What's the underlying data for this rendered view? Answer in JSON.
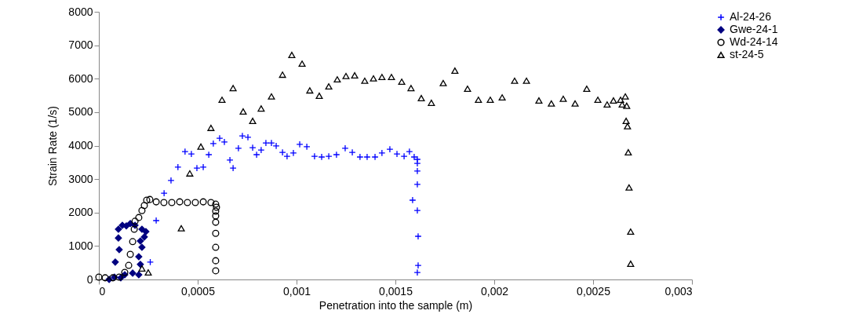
{
  "chart_data": {
    "type": "scatter",
    "xlabel": "Penetration into the sample (m)",
    "ylabel": "Strain Rate (1/s)",
    "xlim": [
      0,
      0.003
    ],
    "ylim": [
      0,
      8000
    ],
    "xticks": [
      0,
      {
        "value": 0.0005,
        "label": "0,0005"
      },
      {
        "value": 0.001,
        "label": "0,001"
      },
      {
        "value": 0.0015,
        "label": "0,0015"
      },
      {
        "value": 0.002,
        "label": "0,002"
      },
      {
        "value": 0.0025,
        "label": "0,0025"
      },
      {
        "value": 0.003,
        "label": "0,003"
      }
    ],
    "yticks": [
      0,
      1000,
      2000,
      3000,
      4000,
      5000,
      6000,
      7000,
      8000
    ],
    "grid": false,
    "legend": "top right",
    "series": [
      {
        "name": "Al-24-26",
        "color": "#0000ff",
        "marker": "cross",
        "x": [
          0.00026,
          0.00029,
          0.00033,
          0.000365,
          0.0004,
          0.000436,
          0.000468,
          0.000496,
          0.000528,
          0.000556,
          0.000579,
          0.000611,
          0.000635,
          0.000663,
          0.000679,
          0.000706,
          0.000726,
          0.000754,
          0.000778,
          0.000798,
          0.000821,
          0.000845,
          0.000873,
          0.000897,
          0.000929,
          0.000952,
          0.000984,
          0.001016,
          0.001052,
          0.001091,
          0.001127,
          0.001163,
          0.001202,
          0.001246,
          0.001282,
          0.001321,
          0.001357,
          0.001397,
          0.001432,
          0.001472,
          0.001508,
          0.001544,
          0.001571,
          0.001595,
          0.001611,
          0.001611,
          0.001611,
          0.001611,
          0.001587,
          0.001611,
          0.001615,
          0.001615,
          0.001611
        ],
        "values": [
          520,
          1760,
          2580,
          2960,
          3360,
          3820,
          3750,
          3330,
          3360,
          3730,
          4060,
          4220,
          4110,
          3570,
          3330,
          3920,
          4290,
          4250,
          3940,
          3730,
          3870,
          4080,
          4080,
          3990,
          3800,
          3680,
          3780,
          4040,
          3970,
          3680,
          3660,
          3680,
          3730,
          3920,
          3800,
          3660,
          3660,
          3660,
          3780,
          3890,
          3750,
          3680,
          3820,
          3660,
          3590,
          3470,
          3240,
          2840,
          2370,
          2060,
          1290,
          420,
          210
        ]
      },
      {
        "name": "Gwe-24-1",
        "color": "#000080",
        "marker": "diamond",
        "x": [
          5.2e-05,
          7.9e-05,
          8.3e-05,
          0.000103,
          9.9e-05,
          9.9e-05,
          0.000119,
          0.000139,
          0.000159,
          0.000183,
          0.000218,
          0.000238,
          0.00023,
          0.00021,
          0.000218,
          0.000202,
          0.00021,
          0.000202,
          0.000171,
          0.000131,
          0.000111
        ],
        "values": [
          0,
          70,
          520,
          890,
          1240,
          1500,
          1620,
          1600,
          1670,
          1620,
          1500,
          1430,
          1270,
          1150,
          960,
          680,
          450,
          140,
          190,
          140,
          50
        ]
      },
      {
        "name": "Wd-24-14",
        "color": "#000000",
        "marker": "circle",
        "x": [
          0,
          3.2e-05,
          7.1e-05,
          0.000103,
          0.000131,
          0.000151,
          0.000159,
          0.000171,
          0.000179,
          0.000183,
          0.000202,
          0.000218,
          0.00023,
          0.000242,
          0.000258,
          0.00029,
          0.000329,
          0.000369,
          0.000409,
          0.000448,
          0.000488,
          0.000528,
          0.000567,
          0.000591,
          0.000595,
          0.000591,
          0.000591,
          0.000591,
          0.000591,
          0.000591,
          0.000591,
          0.000591
        ],
        "values": [
          70,
          50,
          50,
          70,
          210,
          420,
          750,
          1130,
          1500,
          1740,
          1850,
          2060,
          2210,
          2370,
          2390,
          2320,
          2300,
          2300,
          2320,
          2300,
          2300,
          2320,
          2300,
          2250,
          2160,
          2040,
          1900,
          1710,
          1380,
          960,
          560,
          260
        ]
      },
      {
        "name": "st-24-5",
        "color": "#000000",
        "marker": "triangle",
        "x": [
          0.000218,
          0.00025,
          0.000417,
          0.00046,
          0.000516,
          0.000567,
          0.000623,
          0.000679,
          0.00073,
          0.000778,
          0.000821,
          0.000873,
          0.000929,
          0.000976,
          0.001028,
          0.001067,
          0.001115,
          0.001163,
          0.001206,
          0.00125,
          0.001294,
          0.001345,
          0.001389,
          0.001432,
          0.00148,
          0.001532,
          0.001579,
          0.001631,
          0.001682,
          0.001742,
          0.001801,
          0.001865,
          0.00192,
          0.00198,
          0.00204,
          0.002103,
          0.002163,
          0.002226,
          0.002289,
          0.002349,
          0.002409,
          0.002468,
          0.002524,
          0.002571,
          0.002603,
          0.002639,
          0.002663,
          0.002647,
          0.00267,
          0.002667,
          0.002674,
          0.002678,
          0.002682,
          0.00269,
          0.00269
        ],
        "values": [
          330,
          210,
          1530,
          3170,
          3970,
          4530,
          5370,
          5720,
          5020,
          4740,
          5110,
          5470,
          6120,
          6710,
          6450,
          5650,
          5490,
          5770,
          5980,
          6080,
          6100,
          5940,
          6010,
          6050,
          6050,
          5910,
          5720,
          5420,
          5280,
          5870,
          6240,
          5700,
          5370,
          5370,
          5440,
          5940,
          5940,
          5350,
          5260,
          5400,
          5260,
          5700,
          5370,
          5230,
          5350,
          5370,
          5470,
          5230,
          5190,
          4740,
          4580,
          3800,
          2750,
          1430,
          470
        ]
      }
    ]
  }
}
